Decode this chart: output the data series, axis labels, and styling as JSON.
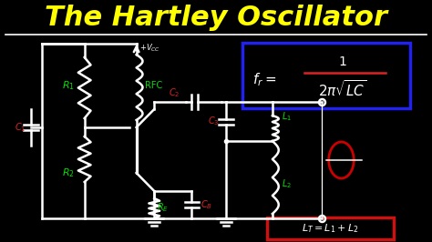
{
  "title": "The Hartley Oscillator",
  "title_color": "#FFFF00",
  "title_fontsize": 22,
  "bg_color": "#000000",
  "circuit_color": "#FFFFFF",
  "label_green": "#00DD00",
  "label_red": "#DD2222",
  "formula_box_color": "#1111CC",
  "formula_box2_color": "#CC1111",
  "sine_color": "#CC0000",
  "line_width": 1.8,
  "figsize": [
    4.74,
    2.66
  ],
  "dpi": 100
}
